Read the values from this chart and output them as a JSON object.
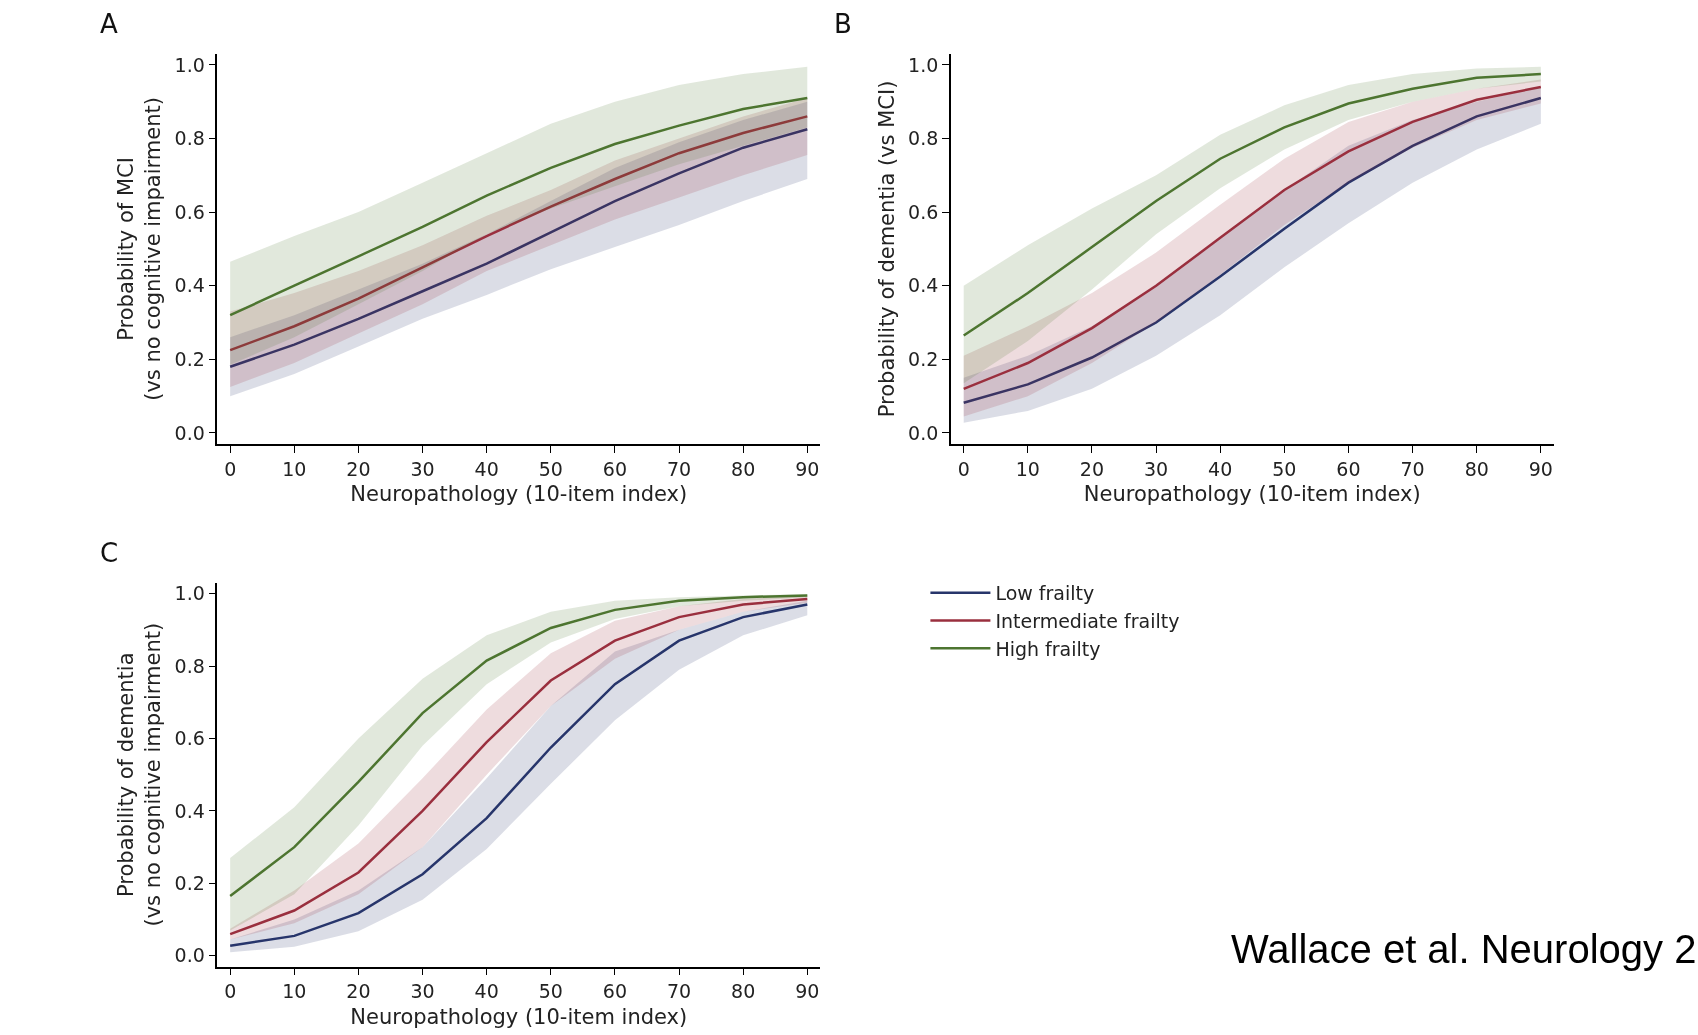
{
  "chart_data": [
    {
      "type": "line",
      "title": "A",
      "xlabel": "Neuropathology (10-item index)",
      "ylabel": "Probability of MCI\n(vs no cognitive impairment)",
      "x": [
        0,
        10,
        20,
        30,
        40,
        50,
        60,
        70,
        80,
        90
      ],
      "xlim": [
        -2,
        92
      ],
      "xticks": [
        0,
        10,
        20,
        30,
        40,
        50,
        60,
        70,
        80,
        90
      ],
      "ylim": [
        -0.03,
        1.03
      ],
      "yticks": [
        {
          "value": 0,
          "label": "0.0"
        },
        {
          "value": 0.2,
          "label": "0.2"
        },
        {
          "value": 0.4,
          "label": "0.4"
        },
        {
          "value": 0.6,
          "label": "0.6"
        },
        {
          "value": 0.8,
          "label": "0.8"
        },
        {
          "value": 1,
          "label": "1.0"
        }
      ],
      "grid": false,
      "legend": false,
      "series": [
        {
          "color": "#27356b",
          "values": [
            0.18,
            0.24,
            0.31,
            0.385,
            0.46,
            0.545,
            0.63,
            0.705,
            0.775,
            0.825
          ],
          "lower": [
            0.1,
            0.16,
            0.235,
            0.31,
            0.375,
            0.445,
            0.505,
            0.565,
            0.63,
            0.69
          ],
          "upper": [
            0.26,
            0.32,
            0.39,
            0.46,
            0.54,
            0.63,
            0.72,
            0.79,
            0.85,
            0.9
          ]
        },
        {
          "color": "#9a2f3e",
          "values": [
            0.225,
            0.29,
            0.365,
            0.45,
            0.535,
            0.615,
            0.69,
            0.76,
            0.815,
            0.86
          ],
          "lower": [
            0.125,
            0.19,
            0.27,
            0.35,
            0.44,
            0.51,
            0.58,
            0.64,
            0.7,
            0.755
          ],
          "upper": [
            0.33,
            0.38,
            0.44,
            0.51,
            0.59,
            0.66,
            0.74,
            0.8,
            0.86,
            0.91
          ]
        },
        {
          "color": "#4d7530",
          "values": [
            0.32,
            0.4,
            0.48,
            0.56,
            0.645,
            0.72,
            0.785,
            0.835,
            0.88,
            0.91
          ],
          "lower": [
            0.185,
            0.26,
            0.35,
            0.44,
            0.54,
            0.61,
            0.67,
            0.73,
            0.78,
            0.83
          ],
          "upper": [
            0.465,
            0.535,
            0.6,
            0.68,
            0.76,
            0.84,
            0.9,
            0.945,
            0.975,
            0.995
          ]
        }
      ]
    },
    {
      "type": "line",
      "title": "B",
      "xlabel": "Neuropathology (10-item index)",
      "ylabel": "Probability of dementia (vs MCI)",
      "x": [
        0,
        10,
        20,
        30,
        40,
        50,
        60,
        70,
        80,
        90
      ],
      "xlim": [
        -2,
        92
      ],
      "xticks": [
        0,
        10,
        20,
        30,
        40,
        50,
        60,
        70,
        80,
        90
      ],
      "ylim": [
        -0.03,
        1.03
      ],
      "yticks": [
        {
          "value": 0,
          "label": "0.0"
        },
        {
          "value": 0.2,
          "label": "0.2"
        },
        {
          "value": 0.4,
          "label": "0.4"
        },
        {
          "value": 0.6,
          "label": "0.6"
        },
        {
          "value": 0.8,
          "label": "0.8"
        },
        {
          "value": 1,
          "label": "1.0"
        }
      ],
      "grid": false,
      "legend": false,
      "series": [
        {
          "color": "#27356b",
          "values": [
            0.082,
            0.132,
            0.205,
            0.3,
            0.425,
            0.555,
            0.68,
            0.78,
            0.86,
            0.91
          ],
          "lower": [
            0.028,
            0.06,
            0.12,
            0.21,
            0.32,
            0.45,
            0.57,
            0.68,
            0.77,
            0.84
          ],
          "upper": [
            0.15,
            0.21,
            0.29,
            0.4,
            0.53,
            0.66,
            0.78,
            0.85,
            0.9,
            0.94
          ]
        },
        {
          "color": "#9a2f3e",
          "values": [
            0.12,
            0.19,
            0.285,
            0.4,
            0.53,
            0.66,
            0.765,
            0.845,
            0.905,
            0.94
          ],
          "lower": [
            0.045,
            0.1,
            0.19,
            0.3,
            0.43,
            0.565,
            0.68,
            0.775,
            0.85,
            0.895
          ],
          "upper": [
            0.21,
            0.29,
            0.38,
            0.49,
            0.62,
            0.745,
            0.845,
            0.9,
            0.935,
            0.96
          ]
        },
        {
          "color": "#4d7530",
          "values": [
            0.265,
            0.38,
            0.505,
            0.63,
            0.745,
            0.83,
            0.895,
            0.935,
            0.965,
            0.975
          ],
          "lower": [
            0.135,
            0.25,
            0.39,
            0.54,
            0.665,
            0.77,
            0.85,
            0.9,
            0.935,
            0.955
          ],
          "upper": [
            0.4,
            0.51,
            0.61,
            0.7,
            0.81,
            0.89,
            0.945,
            0.975,
            0.99,
            0.995
          ]
        }
      ]
    },
    {
      "type": "line",
      "title": "C",
      "xlabel": "Neuropathology (10-item index)",
      "ylabel": "Probability of dementia\n(vs no cognitive impairment)",
      "x": [
        0,
        10,
        20,
        30,
        40,
        50,
        60,
        70,
        80,
        90
      ],
      "xlim": [
        -2,
        92
      ],
      "xticks": [
        0,
        10,
        20,
        30,
        40,
        50,
        60,
        70,
        80,
        90
      ],
      "ylim": [
        -0.03,
        1.03
      ],
      "yticks": [
        {
          "value": 0,
          "label": "0.0"
        },
        {
          "value": 0.2,
          "label": "0.2"
        },
        {
          "value": 0.4,
          "label": "0.4"
        },
        {
          "value": 0.6,
          "label": "0.6"
        },
        {
          "value": 0.8,
          "label": "0.8"
        },
        {
          "value": 1,
          "label": "1.0"
        }
      ],
      "grid": false,
      "legend": "right",
      "annotations": [
        "Wallace et al. Neurology 2"
      ],
      "series": [
        {
          "name": "Low frailty",
          "color": "#27356b",
          "values": [
            0.028,
            0.055,
            0.118,
            0.225,
            0.38,
            0.575,
            0.75,
            0.87,
            0.935,
            0.97
          ],
          "lower": [
            0.01,
            0.025,
            0.068,
            0.155,
            0.295,
            0.475,
            0.65,
            0.79,
            0.885,
            0.94
          ],
          "upper": [
            0.045,
            0.1,
            0.18,
            0.3,
            0.49,
            0.69,
            0.84,
            0.9,
            0.95,
            0.98
          ]
        },
        {
          "name": "Intermediate frailty",
          "color": "#9a2f3e",
          "values": [
            0.06,
            0.125,
            0.23,
            0.4,
            0.59,
            0.76,
            0.87,
            0.935,
            0.97,
            0.985
          ],
          "lower": [
            0.045,
            0.09,
            0.17,
            0.3,
            0.5,
            0.69,
            0.82,
            0.9,
            0.95,
            0.975
          ],
          "upper": [
            0.075,
            0.18,
            0.31,
            0.49,
            0.68,
            0.835,
            0.925,
            0.965,
            0.985,
            0.995
          ]
        },
        {
          "name": "High frailty",
          "color": "#4d7530",
          "values": [
            0.165,
            0.3,
            0.48,
            0.67,
            0.815,
            0.905,
            0.955,
            0.98,
            0.99,
            0.995
          ],
          "lower": [
            0.07,
            0.17,
            0.36,
            0.58,
            0.75,
            0.865,
            0.93,
            0.965,
            0.98,
            0.99
          ],
          "upper": [
            0.27,
            0.41,
            0.6,
            0.765,
            0.885,
            0.95,
            0.98,
            0.99,
            0.995,
            0.998
          ]
        }
      ]
    }
  ]
}
